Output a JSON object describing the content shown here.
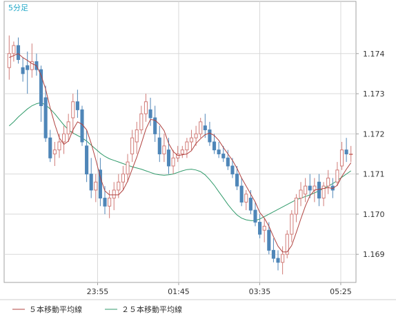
{
  "chart_data": {
    "type": "candlestick",
    "timeframe_label": "5分足",
    "x_tick_labels": [
      "23:55",
      "01:45",
      "03:35",
      "05:25"
    ],
    "y_ticks": [
      1.169,
      1.17,
      1.171,
      1.172,
      1.173,
      1.174
    ],
    "y_tick_labels": [
      "1.169",
      "1.170",
      "1.171",
      "1.172",
      "1.173",
      "1.174"
    ],
    "ylim": [
      1.1683,
      1.1753
    ],
    "grid": true,
    "legend_position": "bottom-left",
    "colors": {
      "up": "#d07a76",
      "down": "#4f86b8",
      "ma5": "#b0413e",
      "ma25": "#2f9a6a",
      "grid": "#d8d8d8",
      "frame": "#a0a0a0",
      "label_cyan": "#22a8c8"
    },
    "series": [
      {
        "name": "５本移動平均線",
        "key": "ma5"
      },
      {
        "name": "２５本移動平均線",
        "key": "ma25"
      }
    ],
    "candles": [
      [
        1.17365,
        1.17445,
        1.17335,
        1.174
      ],
      [
        1.174,
        1.1743,
        1.1738,
        1.1742
      ],
      [
        1.1742,
        1.1744,
        1.17375,
        1.17385
      ],
      [
        1.17365,
        1.1739,
        1.1733,
        1.1735
      ],
      [
        1.1737,
        1.17405,
        1.173,
        1.1736
      ],
      [
        1.1736,
        1.17425,
        1.1734,
        1.1738
      ],
      [
        1.1738,
        1.174,
        1.17345,
        1.1736
      ],
      [
        1.1736,
        1.1737,
        1.1723,
        1.1727
      ],
      [
        1.1729,
        1.1732,
        1.1718,
        1.1719
      ],
      [
        1.1719,
        1.1721,
        1.1713,
        1.1714
      ],
      [
        1.1715,
        1.1718,
        1.1712,
        1.1716
      ],
      [
        1.1716,
        1.172,
        1.1714,
        1.1718
      ],
      [
        1.1718,
        1.1722,
        1.1715,
        1.172
      ],
      [
        1.172,
        1.1725,
        1.1718,
        1.1723
      ],
      [
        1.1724,
        1.173,
        1.172,
        1.1728
      ],
      [
        1.1728,
        1.1731,
        1.1724,
        1.1726
      ],
      [
        1.1726,
        1.1727,
        1.1717,
        1.1718
      ],
      [
        1.1717,
        1.1721,
        1.1708,
        1.171
      ],
      [
        1.171,
        1.1714,
        1.1704,
        1.1706
      ],
      [
        1.1706,
        1.171,
        1.1703,
        1.1708
      ],
      [
        1.1711,
        1.1714,
        1.1702,
        1.1704
      ],
      [
        1.1704,
        1.1707,
        1.17,
        1.1702
      ],
      [
        1.1702,
        1.1706,
        1.1699,
        1.1704
      ],
      [
        1.1704,
        1.1708,
        1.1701,
        1.1706
      ],
      [
        1.1706,
        1.171,
        1.1704,
        1.1708
      ],
      [
        1.1708,
        1.1712,
        1.1706,
        1.171
      ],
      [
        1.171,
        1.1715,
        1.1708,
        1.1713
      ],
      [
        1.1715,
        1.1721,
        1.1713,
        1.1719
      ],
      [
        1.1718,
        1.1723,
        1.1715,
        1.1721
      ],
      [
        1.1721,
        1.1727,
        1.172,
        1.1725
      ],
      [
        1.1725,
        1.173,
        1.1723,
        1.1728
      ],
      [
        1.1726,
        1.1729,
        1.1722,
        1.1724
      ],
      [
        1.1724,
        1.1727,
        1.1718,
        1.172
      ],
      [
        1.1719,
        1.1722,
        1.1713,
        1.1715
      ],
      [
        1.1715,
        1.172,
        1.1713,
        1.1717
      ],
      [
        1.1716,
        1.1719,
        1.171,
        1.1712
      ],
      [
        1.1712,
        1.1716,
        1.171,
        1.1714
      ],
      [
        1.1714,
        1.1717,
        1.1713,
        1.1715
      ],
      [
        1.1715,
        1.1717,
        1.1714,
        1.1716
      ],
      [
        1.1716,
        1.1719,
        1.1714,
        1.1718
      ],
      [
        1.1718,
        1.1721,
        1.1716,
        1.1719
      ],
      [
        1.1719,
        1.1722,
        1.1717,
        1.172
      ],
      [
        1.172,
        1.1724,
        1.1719,
        1.1723
      ],
      [
        1.1722,
        1.1725,
        1.1719,
        1.1721
      ],
      [
        1.1721,
        1.1723,
        1.1717,
        1.1718
      ],
      [
        1.1718,
        1.172,
        1.1715,
        1.1716
      ],
      [
        1.1716,
        1.1718,
        1.1714,
        1.1715
      ],
      [
        1.1715,
        1.1717,
        1.1713,
        1.1714
      ],
      [
        1.1714,
        1.1716,
        1.1711,
        1.1712
      ],
      [
        1.1712,
        1.1714,
        1.1709,
        1.171
      ],
      [
        1.171,
        1.1712,
        1.1706,
        1.1707
      ],
      [
        1.1707,
        1.1709,
        1.1702,
        1.1703
      ],
      [
        1.1703,
        1.1706,
        1.1701,
        1.1705
      ],
      [
        1.1704,
        1.1706,
        1.17,
        1.1701
      ],
      [
        1.1701,
        1.1703,
        1.1697,
        1.1698
      ],
      [
        1.1698,
        1.17,
        1.1694,
        1.1695
      ],
      [
        1.1696,
        1.1699,
        1.1693,
        1.1697
      ],
      [
        1.1696,
        1.1698,
        1.169,
        1.1691
      ],
      [
        1.1691,
        1.1694,
        1.1688,
        1.1689
      ],
      [
        1.1689,
        1.1691,
        1.1686,
        1.1688
      ],
      [
        1.1688,
        1.1692,
        1.1685,
        1.169
      ],
      [
        1.169,
        1.1696,
        1.1689,
        1.1695
      ],
      [
        1.1695,
        1.1701,
        1.1693,
        1.17
      ],
      [
        1.17,
        1.1705,
        1.1698,
        1.1704
      ],
      [
        1.1704,
        1.1708,
        1.1702,
        1.1706
      ],
      [
        1.1705,
        1.1709,
        1.1703,
        1.1707
      ],
      [
        1.1707,
        1.171,
        1.1704,
        1.1706
      ],
      [
        1.1706,
        1.1709,
        1.1703,
        1.1707
      ],
      [
        1.1708,
        1.171,
        1.1702,
        1.1704
      ],
      [
        1.1704,
        1.1708,
        1.1702,
        1.1707
      ],
      [
        1.1707,
        1.1711,
        1.1705,
        1.1709
      ],
      [
        1.1707,
        1.1709,
        1.1704,
        1.1706
      ],
      [
        1.1708,
        1.1713,
        1.1707,
        1.1711
      ],
      [
        1.1712,
        1.1718,
        1.1711,
        1.1716
      ],
      [
        1.1716,
        1.1719,
        1.1713,
        1.1715
      ],
      [
        1.1715,
        1.1717,
        1.1713,
        1.1715
      ]
    ],
    "ma5": [
      1.1739,
      1.17395,
      1.174,
      1.1739,
      1.17383,
      1.17375,
      1.1737,
      1.17346,
      1.17312,
      1.17264,
      1.17224,
      1.1719,
      1.17174,
      1.17182,
      1.1721,
      1.1723,
      1.17224,
      1.1721,
      1.17176,
      1.17136,
      1.17092,
      1.17058,
      1.17048,
      1.17048,
      1.17048,
      1.1706,
      1.17082,
      1.17112,
      1.17142,
      1.17176,
      1.17212,
      1.17236,
      1.17234,
      1.17224,
      1.17208,
      1.17176,
      1.17156,
      1.17146,
      1.17148,
      1.1715,
      1.17158,
      1.17176,
      1.17188,
      1.17198,
      1.17202,
      1.17196,
      1.17184,
      1.17166,
      1.1715,
      1.17134,
      1.17114,
      1.1709,
      1.1707,
      1.1705,
      1.1703,
      1.17004,
      1.1699,
      1.1697,
      1.16944,
      1.1692,
      1.16906,
      1.16906,
      1.16922,
      1.16954,
      1.16988,
      1.1702,
      1.17046,
      1.1706,
      1.17062,
      1.17064,
      1.17066,
      1.17064,
      1.17072,
      1.17094,
      1.17112,
      1.17128
    ],
    "ma25": [
      1.1722,
      1.1723,
      1.17242,
      1.17252,
      1.17262,
      1.1727,
      1.17275,
      1.17278,
      1.17272,
      1.17262,
      1.1725,
      1.17236,
      1.17222,
      1.1721,
      1.17202,
      1.17196,
      1.1719,
      1.17182,
      1.17172,
      1.17162,
      1.17152,
      1.17144,
      1.17138,
      1.17134,
      1.1713,
      1.17126,
      1.17122,
      1.17118,
      1.17115,
      1.17112,
      1.17108,
      1.17104,
      1.171,
      1.17098,
      1.17097,
      1.17098,
      1.171,
      1.17104,
      1.17108,
      1.17111,
      1.17112,
      1.1711,
      1.17106,
      1.17098,
      1.17086,
      1.17072,
      1.17056,
      1.1704,
      1.17024,
      1.1701,
      1.16998,
      1.1699,
      1.16986,
      1.16984,
      1.16984,
      1.16988,
      1.16994,
      1.17,
      1.17006,
      1.17012,
      1.17018,
      1.17024,
      1.1703,
      1.17036,
      1.1704,
      1.17044,
      1.17048,
      1.17053,
      1.17058,
      1.17064,
      1.1707,
      1.17076,
      1.17084,
      1.17092,
      1.171,
      1.17108
    ]
  }
}
